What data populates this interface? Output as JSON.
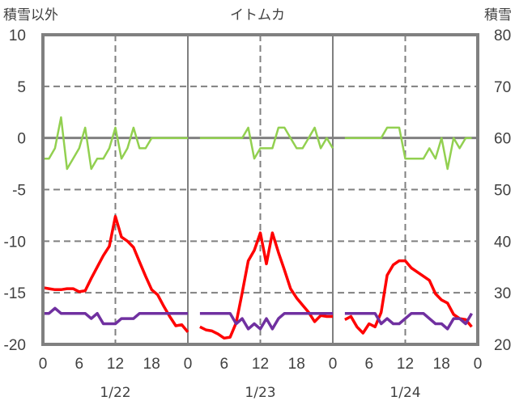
{
  "chart_data": {
    "type": "line",
    "title": "イトムカ",
    "left_axis_label": "積雪以外",
    "right_axis_label": "積雪",
    "left_ylim": [
      -20,
      10
    ],
    "right_ylim": [
      20,
      80
    ],
    "left_ticks": [
      "10",
      "5",
      "0",
      "-5",
      "-10",
      "-15",
      "-20"
    ],
    "right_ticks": [
      "80",
      "70",
      "60",
      "50",
      "40",
      "30",
      "20"
    ],
    "x_ticks": [
      "0",
      "6",
      "12",
      "18",
      "0",
      "6",
      "12",
      "18",
      "0",
      "6",
      "12",
      "18",
      "0"
    ],
    "days": [
      "1/22",
      "1/23",
      "1/24"
    ],
    "grid": true,
    "series": [
      {
        "name": "green",
        "axis": "left",
        "color": "#92d050",
        "segments": [
          {
            "day": 0,
            "start_hour": 0,
            "values": [
              -2,
              -2,
              -1,
              2,
              -3,
              -2,
              -1,
              1,
              -3,
              -2,
              -2,
              -1,
              1,
              -2,
              -1,
              1,
              -1,
              -1,
              0,
              0,
              0,
              0,
              0,
              0,
              0
            ]
          },
          {
            "day": 1,
            "start_hour": 2,
            "values": [
              0,
              0,
              0,
              0,
              0,
              0,
              0,
              0,
              1,
              -2,
              -1,
              -1,
              -1,
              1,
              1,
              0,
              -1,
              -1,
              0,
              1,
              -1,
              0,
              -1
            ]
          },
          {
            "day": 2,
            "start_hour": 2,
            "values": [
              0,
              0,
              0,
              0,
              0,
              0,
              0,
              1,
              1,
              1,
              -2,
              -2,
              -2,
              -2,
              -1,
              -2,
              0,
              -3,
              0,
              -1,
              0,
              0
            ]
          }
        ]
      },
      {
        "name": "red",
        "axis": "left",
        "color": "#ff0000",
        "segments": [
          {
            "day": 0,
            "start_hour": 0,
            "values": [
              -14.5,
              -14.6,
              -14.7,
              -14.7,
              -14.6,
              -14.6,
              -14.9,
              -14.8,
              -13.6,
              -12.5,
              -11.4,
              -10.5,
              -7.6,
              -9.6,
              -10.0,
              -10.6,
              -12.0,
              -13.4,
              -14.7,
              -15.2,
              -16.3,
              -17.3,
              -18.2,
              -18.1,
              -18.8
            ]
          },
          {
            "day": 1,
            "start_hour": 2,
            "values": [
              -18.3,
              -18.6,
              -18.7,
              -19.0,
              -19.4,
              -19.3,
              -17.9,
              -15.0,
              -11.9,
              -10.9,
              -9.2,
              -12.2,
              -9.2,
              -11.1,
              -12.8,
              -14.6,
              -15.5,
              -16.2,
              -16.9,
              -17.8,
              -17.2,
              -17.3,
              -17.3
            ]
          },
          {
            "day": 2,
            "start_hour": 2,
            "values": [
              -17.6,
              -17.3,
              -18.3,
              -18.9,
              -18.0,
              -18.3,
              -16.9,
              -13.3,
              -12.3,
              -11.9,
              -11.9,
              -12.6,
              -13.0,
              -13.4,
              -13.8,
              -15.1,
              -15.7,
              -16.0,
              -17.1,
              -17.5,
              -17.6,
              -18.3
            ]
          }
        ]
      },
      {
        "name": "purple",
        "axis": "right",
        "color": "#7030a0",
        "segments": [
          {
            "day": 0,
            "start_hour": 0,
            "values": [
              26,
              26,
              27,
              26,
              26,
              26,
              26,
              26,
              25,
              26,
              24,
              24,
              24,
              25,
              25,
              25,
              26,
              26,
              26,
              26,
              26,
              26,
              26,
              26,
              26
            ]
          },
          {
            "day": 1,
            "start_hour": 2,
            "values": [
              26,
              26,
              26,
              26,
              26,
              26,
              24,
              25,
              23,
              24,
              23,
              25,
              23,
              25,
              26,
              26,
              26,
              26,
              26,
              26,
              26,
              26,
              26
            ]
          },
          {
            "day": 2,
            "start_hour": 2,
            "values": [
              26,
              26,
              26,
              26,
              26,
              26,
              24,
              25,
              24,
              24,
              25,
              26,
              26,
              26,
              25,
              24,
              24,
              23,
              25,
              25,
              24,
              26
            ]
          }
        ]
      }
    ]
  }
}
